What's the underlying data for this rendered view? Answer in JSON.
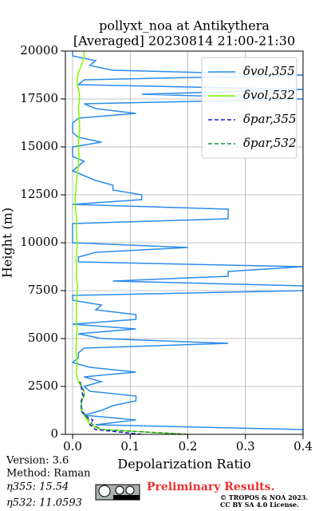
{
  "chart_data": {
    "type": "line",
    "title": "pollyxt_noa at Antikythera",
    "subtitle": "[Averaged] 20230814 21:00-21:30",
    "x_label": "Depolarization Ratio",
    "y_label": "Height (m)",
    "xlim": [
      -0.0125,
      0.4
    ],
    "ylim": [
      0,
      20000
    ],
    "xticks": [
      {
        "value": 0,
        "label": "0.0"
      },
      0.1,
      0.2,
      0.3,
      0.4
    ],
    "yticks": [
      0,
      2500,
      5000,
      7500,
      10000,
      12500,
      15000,
      17500,
      20000
    ],
    "grid": true,
    "legend": "upper right",
    "y": [
      0,
      250,
      500,
      750,
      1000,
      1250,
      1500,
      1750,
      2000,
      2250,
      2500,
      2750,
      3000,
      3250,
      3500,
      3750,
      4000,
      4250,
      4500,
      4750,
      5000,
      5250,
      5500,
      5750,
      6000,
      6250,
      6500,
      6750,
      7000,
      7250,
      7500,
      7750,
      8000,
      8250,
      8500,
      8750,
      9000,
      9250,
      9500,
      9750,
      10000,
      10250,
      10500,
      10750,
      11000,
      11250,
      11500,
      11750,
      12000,
      12250,
      12500,
      12750,
      13000,
      13250,
      13500,
      13750,
      14000,
      14250,
      14500,
      14750,
      15000,
      15250,
      15500,
      15750,
      16000,
      16250,
      16500,
      16750,
      17000,
      17250,
      17500,
      17750,
      18000,
      18250,
      18500,
      18750,
      19000,
      19250,
      19500,
      19750,
      20000
    ],
    "series": [
      {
        "name": "δvol,355",
        "color": "#2b8ceb",
        "dash": false,
        "values": [
          0.4,
          0.4,
          0.04,
          0.11,
          0.02,
          0.05,
          0.07,
          0.11,
          0.11,
          0.03,
          0.02,
          0.05,
          0.02,
          0.11,
          0.03,
          0.0,
          0.01,
          0.01,
          0.02,
          0.27,
          0.05,
          0.01,
          0.11,
          0.0,
          0.11,
          0.11,
          0.04,
          0.05,
          0.0,
          0.0,
          0.4,
          0.4,
          0.07,
          0.27,
          0.27,
          0.4,
          0.01,
          0.01,
          0.04,
          0.2,
          0.0,
          0.0,
          0.0,
          0.0,
          0.0,
          0.27,
          0.27,
          0.27,
          0.0,
          0.12,
          0.12,
          0.07,
          0.07,
          0.04,
          0.02,
          0.0,
          0.01,
          0.02,
          0.0,
          0.0,
          0.0,
          0.05,
          0.01,
          0.0,
          0.0,
          0.0,
          0.01,
          0.11,
          0.04,
          0.02,
          0.4,
          0.12,
          0.4,
          0.01,
          0.02,
          0.4,
          0.07,
          0.03,
          0.04,
          0.0,
          0.0
        ]
      },
      {
        "name": "δvol,532",
        "color": "#7cfc00",
        "dash": false,
        "values": [
          0.2,
          0.05,
          0.03,
          0.025,
          0.02,
          0.015,
          0.015,
          0.015,
          0.02,
          0.02,
          0.015,
          0.01,
          0.008,
          0.006,
          0.007,
          0.008,
          0.007,
          0.006,
          0.006,
          0.007,
          0.006,
          0.007,
          0.008,
          0.007,
          0.006,
          0.007,
          0.006,
          0.007,
          0.007,
          0.008,
          0.008,
          0.009,
          0.007,
          0.006,
          0.007,
          0.007,
          0.006,
          0.006,
          0.007,
          0.008,
          0.008,
          0.007,
          0.007,
          0.006,
          0.007,
          0.007,
          0.006,
          0.005,
          0.005,
          0.004,
          0.005,
          0.006,
          0.006,
          0.007,
          0.008,
          0.009,
          0.01,
          0.01,
          0.011,
          0.011,
          0.01,
          0.01,
          0.011,
          0.012,
          0.012,
          0.012,
          0.011,
          0.011,
          0.01,
          0.011,
          0.012,
          0.012,
          0.01,
          0.008,
          0.008,
          0.009,
          0.012,
          0.015,
          0.018,
          0.02,
          0.02
        ]
      },
      {
        "name": "δpar,355",
        "color": "#1a1acc",
        "dash": true,
        "values": [
          0.12,
          0.04,
          0.03,
          0.035,
          0.02,
          0.015,
          0.015,
          0.015,
          0.018,
          0.016,
          0.015,
          0.013,
          null,
          null,
          null,
          null,
          null,
          null,
          null,
          null,
          null,
          null,
          null,
          null,
          null,
          null,
          null,
          null,
          null,
          null,
          null,
          null,
          null,
          null,
          null,
          null,
          null,
          null,
          null,
          null,
          null,
          null,
          null,
          null,
          null,
          null,
          null,
          null,
          null,
          null,
          null,
          null,
          null,
          null,
          null,
          null,
          null,
          null,
          null,
          null,
          null,
          null,
          null,
          null,
          null,
          null,
          null,
          null,
          null,
          null,
          null,
          null,
          null,
          null,
          null,
          null,
          null,
          null,
          null,
          null,
          null
        ]
      },
      {
        "name": "δpar,532",
        "color": "#228b4f",
        "dash": true,
        "values": [
          0.2,
          0.05,
          0.035,
          0.028,
          0.022,
          0.017,
          0.015,
          0.016,
          0.02,
          0.019,
          0.016,
          0.012,
          null,
          null,
          null,
          null,
          null,
          null,
          null,
          null,
          null,
          null,
          null,
          null,
          null,
          null,
          null,
          null,
          null,
          null,
          null,
          null,
          null,
          null,
          null,
          null,
          null,
          null,
          null,
          null,
          null,
          null,
          null,
          null,
          null,
          null,
          null,
          null,
          null,
          null,
          null,
          null,
          null,
          null,
          null,
          null,
          null,
          null,
          null,
          null,
          null,
          null,
          null,
          null,
          null,
          null,
          null,
          null,
          null,
          null,
          null,
          null,
          null,
          null,
          null,
          null,
          null,
          null,
          null,
          null,
          null
        ]
      }
    ],
    "annotations": [
      "Version: 3.6",
      "Method: Raman",
      "η355:  15.54",
      "η532: 11.0593"
    ],
    "preliminary": "Preliminary Results.",
    "copyright": [
      "© TROPOS & NOA 2023.",
      "CC BY SA 4.0 License."
    ]
  }
}
